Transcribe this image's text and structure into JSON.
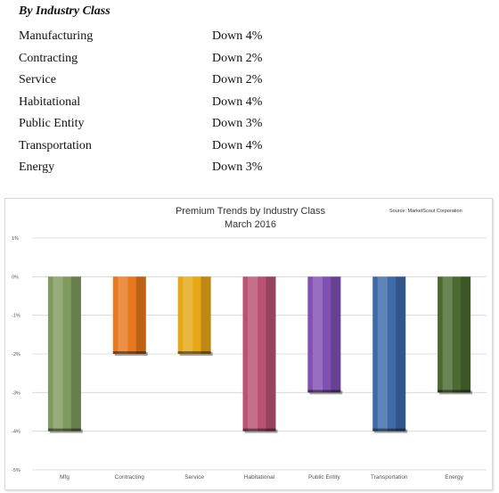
{
  "heading": "By Industry Class",
  "industries": [
    {
      "name": "Manufacturing",
      "change": "Down 4%"
    },
    {
      "name": "Contracting",
      "change": "Down 2%"
    },
    {
      "name": "Service",
      "change": "Down 2%"
    },
    {
      "name": "Habitational",
      "change": "Down 4%"
    },
    {
      "name": "Public Entity",
      "change": "Down 3%"
    },
    {
      "name": "Transportation",
      "change": "Down 4%"
    },
    {
      "name": "Energy",
      "change": "Down 3%"
    }
  ],
  "chart_data": {
    "type": "bar",
    "title": "Premium Trends by Industry Class",
    "subtitle": "March 2016",
    "source": "Source: MarketScout Corporation",
    "categories": [
      "Mfg",
      "Contracting",
      "Service",
      "Habitational",
      "Public Entity",
      "Transportation",
      "Energy"
    ],
    "values": [
      -4,
      -2,
      -2,
      -4,
      -3,
      -4,
      -3
    ],
    "colors": [
      "#7f9a5d",
      "#e8781e",
      "#e6a817",
      "#b95273",
      "#8150b3",
      "#3e6aa8",
      "#4a6a30"
    ],
    "ylim": [
      -5,
      1
    ],
    "yticks": [
      1,
      0,
      -1,
      -2,
      -3,
      -4,
      -5
    ],
    "ytick_labels": [
      "1%",
      "0%",
      "-1%",
      "-2%",
      "-3%",
      "-4%",
      "-5%"
    ],
    "grid": true,
    "legend": "none"
  }
}
